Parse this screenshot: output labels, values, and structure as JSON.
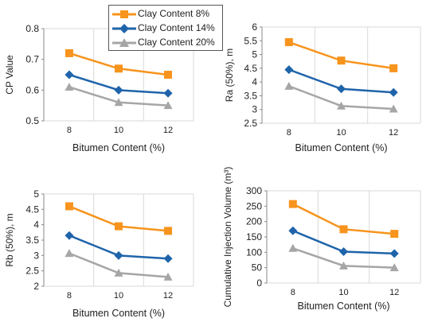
{
  "legend": {
    "items": [
      {
        "label": "Clay Content 8%",
        "color": "#F7941D",
        "marker": "square"
      },
      {
        "label": "Clay Content 14%",
        "color": "#1F64AA",
        "marker": "diamond"
      },
      {
        "label": "Clay Content 20%",
        "color": "#A6A6A6",
        "marker": "triangle"
      }
    ]
  },
  "chart_data": [
    {
      "type": "line",
      "title": "",
      "xlabel": "Bitumen Content (%)",
      "ylabel": "CP Value",
      "categories": [
        "8",
        "10",
        "12"
      ],
      "ylim": [
        0.5,
        0.8
      ],
      "yticks": [
        "0.5",
        "0.6",
        "0.7",
        "0.8"
      ],
      "grid": "vertical",
      "series": [
        {
          "name": "Clay Content 8%",
          "values": [
            0.72,
            0.67,
            0.65
          ]
        },
        {
          "name": "Clay Content 14%",
          "values": [
            0.65,
            0.6,
            0.59
          ]
        },
        {
          "name": "Clay Content 20%",
          "values": [
            0.61,
            0.56,
            0.55
          ]
        }
      ]
    },
    {
      "type": "line",
      "title": "",
      "xlabel": "Bitumen Content (%)",
      "ylabel": "Ra (50%), m",
      "categories": [
        "8",
        "10",
        "12"
      ],
      "ylim": [
        2.5,
        6
      ],
      "yticks": [
        "2.5",
        "3",
        "3.5",
        "4",
        "4.5",
        "5",
        "5.5",
        "6"
      ],
      "grid": "vertical",
      "series": [
        {
          "name": "Clay Content 8%",
          "values": [
            5.45,
            4.78,
            4.5
          ]
        },
        {
          "name": "Clay Content 14%",
          "values": [
            4.45,
            3.75,
            3.62
          ]
        },
        {
          "name": "Clay Content 20%",
          "values": [
            3.85,
            3.13,
            3.02
          ]
        }
      ]
    },
    {
      "type": "line",
      "title": "",
      "xlabel": "Bitumen Content (%)",
      "ylabel": "Rb (50%), m",
      "categories": [
        "8",
        "10",
        "12"
      ],
      "ylim": [
        2,
        5
      ],
      "yticks": [
        "2",
        "2.5",
        "3",
        "3.5",
        "4",
        "4.5",
        "5"
      ],
      "grid": "vertical",
      "series": [
        {
          "name": "Clay Content 8%",
          "values": [
            4.6,
            3.95,
            3.8
          ]
        },
        {
          "name": "Clay Content 14%",
          "values": [
            3.65,
            3.0,
            2.9
          ]
        },
        {
          "name": "Clay Content 20%",
          "values": [
            3.07,
            2.43,
            2.3
          ]
        }
      ]
    },
    {
      "type": "line",
      "title": "",
      "xlabel": "Bitumen Content (%)",
      "ylabel": "Cumulative Injection Volume (m³)",
      "categories": [
        "8",
        "10",
        "12"
      ],
      "ylim": [
        0,
        300
      ],
      "yticks": [
        "0",
        "50",
        "100",
        "150",
        "200",
        "250",
        "300"
      ],
      "grid": "vertical",
      "series": [
        {
          "name": "Clay Content 8%",
          "values": [
            257,
            175,
            160
          ]
        },
        {
          "name": "Clay Content 14%",
          "values": [
            170,
            102,
            96
          ]
        },
        {
          "name": "Clay Content 20%",
          "values": [
            113,
            56,
            50
          ]
        }
      ]
    }
  ]
}
